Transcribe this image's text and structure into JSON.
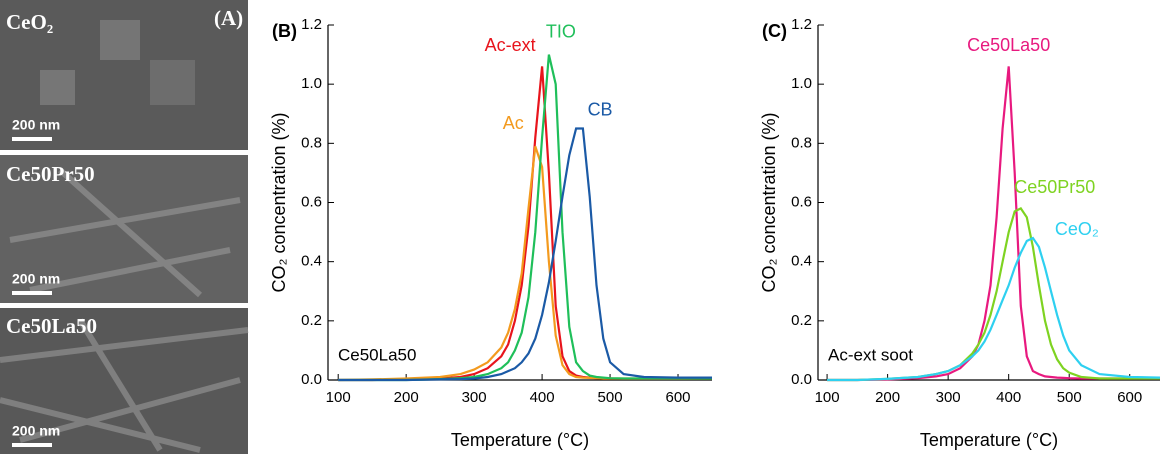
{
  "panel_a": {
    "label": "(A)",
    "images": [
      {
        "label": "CeO₂",
        "scale": "200 nm"
      },
      {
        "label": "Ce50Pr50",
        "scale": "200 nm"
      },
      {
        "label": "Ce50La50",
        "scale": "200 nm"
      }
    ]
  },
  "chart_data": [
    {
      "type": "line",
      "panel": "(B)",
      "annotation": "Ce50La50",
      "xlabel": "Temperature (°C)",
      "ylabel": "CO₂ concentration (%)",
      "x": [
        100,
        150,
        200,
        250,
        280,
        300,
        320,
        340,
        350,
        360,
        370,
        380,
        390,
        400,
        410,
        420,
        430,
        440,
        450,
        460,
        470,
        480,
        490,
        500,
        520,
        550,
        600,
        650
      ],
      "xlim": [
        85,
        650
      ],
      "xticks": [
        100,
        200,
        300,
        400,
        500,
        600
      ],
      "ylim": [
        0,
        1.2
      ],
      "yticks": [
        {
          "value": 0,
          "label": "0.0"
        },
        0.2,
        0.4,
        0.6,
        0.8,
        {
          "value": 1,
          "label": "1.0"
        },
        1.2
      ],
      "series": [
        {
          "name": "Ac-ext",
          "color": "#e8141c",
          "values": [
            0,
            0,
            0.002,
            0.005,
            0.01,
            0.02,
            0.04,
            0.08,
            0.12,
            0.2,
            0.32,
            0.52,
            0.82,
            1.06,
            0.7,
            0.25,
            0.08,
            0.03,
            0.015,
            0.01,
            0.008,
            0.006,
            0.005,
            0.005,
            0.004,
            0.004,
            0.004,
            0.005
          ]
        },
        {
          "name": "Ac",
          "color": "#f39a1e",
          "values": [
            0,
            0.002,
            0.005,
            0.01,
            0.02,
            0.035,
            0.06,
            0.11,
            0.16,
            0.24,
            0.36,
            0.58,
            0.79,
            0.72,
            0.4,
            0.15,
            0.05,
            0.02,
            0.01,
            0.008,
            0.007,
            0.006,
            0.005,
            0.005,
            0.005,
            0.005,
            0.005,
            0.005
          ]
        },
        {
          "name": "TIO",
          "color": "#1fbf5a",
          "values": [
            0,
            0,
            0,
            0.003,
            0.006,
            0.01,
            0.02,
            0.04,
            0.06,
            0.1,
            0.16,
            0.28,
            0.5,
            0.82,
            1.1,
            1.0,
            0.5,
            0.18,
            0.06,
            0.03,
            0.015,
            0.01,
            0.008,
            0.006,
            0.005,
            0.005,
            0.005,
            0.005
          ]
        },
        {
          "name": "CB",
          "color": "#1b5aa6",
          "values": [
            0,
            0,
            0,
            0.002,
            0.003,
            0.005,
            0.01,
            0.02,
            0.03,
            0.04,
            0.06,
            0.09,
            0.14,
            0.22,
            0.33,
            0.47,
            0.62,
            0.76,
            0.85,
            0.85,
            0.62,
            0.32,
            0.14,
            0.06,
            0.02,
            0.01,
            0.008,
            0.008
          ]
        }
      ]
    },
    {
      "type": "line",
      "panel": "(C)",
      "annotation": "Ac-ext soot",
      "xlabel": "Temperature (°C)",
      "ylabel": "CO₂ concentration (%)",
      "x": [
        100,
        150,
        200,
        250,
        280,
        300,
        320,
        340,
        350,
        360,
        370,
        380,
        390,
        400,
        410,
        420,
        430,
        440,
        450,
        460,
        470,
        480,
        490,
        500,
        520,
        550,
        600,
        650
      ],
      "xlim": [
        85,
        650
      ],
      "xticks": [
        100,
        200,
        300,
        400,
        500,
        600
      ],
      "ylim": [
        0,
        1.2
      ],
      "yticks": [
        {
          "value": 0,
          "label": "0.0"
        },
        0.2,
        0.4,
        0.6,
        0.8,
        {
          "value": 1,
          "label": "1.0"
        },
        1.2
      ],
      "series": [
        {
          "name": "Ce50La50",
          "color": "#e8197f",
          "values": [
            0,
            0,
            0.002,
            0.006,
            0.012,
            0.02,
            0.04,
            0.08,
            0.12,
            0.2,
            0.32,
            0.55,
            0.85,
            1.06,
            0.7,
            0.25,
            0.08,
            0.03,
            0.02,
            0.012,
            0.01,
            0.008,
            0.007,
            0.006,
            0.005,
            0.005,
            0.005,
            0.005
          ]
        },
        {
          "name": "Ce50Pr50",
          "color": "#7ed321",
          "values": [
            0,
            0,
            0.004,
            0.01,
            0.02,
            0.03,
            0.05,
            0.09,
            0.12,
            0.16,
            0.22,
            0.3,
            0.4,
            0.5,
            0.57,
            0.58,
            0.55,
            0.45,
            0.32,
            0.2,
            0.12,
            0.07,
            0.04,
            0.025,
            0.01,
            0.005,
            0.005,
            0.005
          ]
        },
        {
          "name": "CeO₂",
          "color": "#2ed0f0",
          "values": [
            0,
            0,
            0.004,
            0.01,
            0.02,
            0.03,
            0.05,
            0.08,
            0.1,
            0.13,
            0.17,
            0.22,
            0.27,
            0.32,
            0.38,
            0.43,
            0.47,
            0.48,
            0.45,
            0.38,
            0.3,
            0.22,
            0.15,
            0.1,
            0.05,
            0.02,
            0.01,
            0.008
          ]
        }
      ]
    }
  ]
}
